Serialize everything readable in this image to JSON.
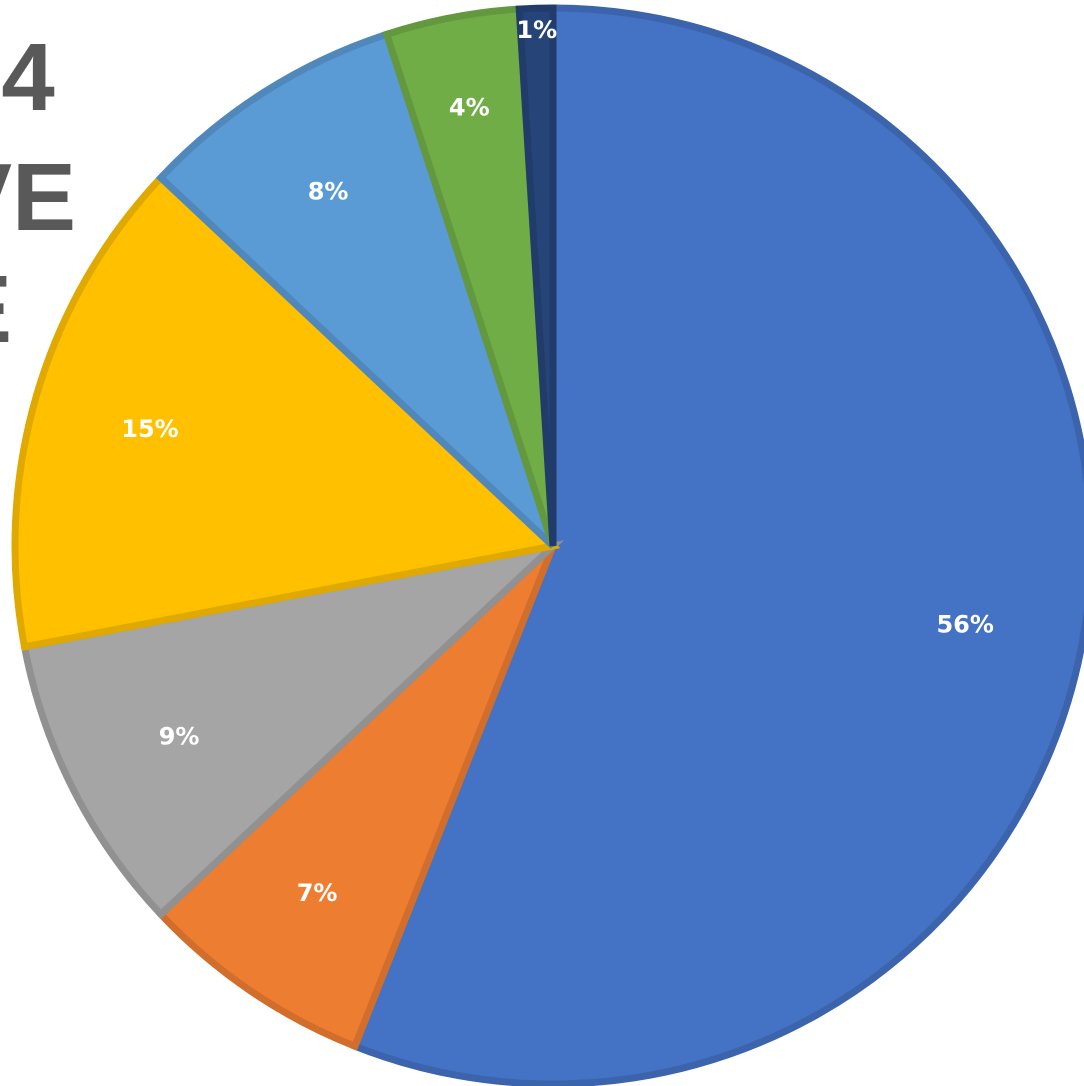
{
  "title_fragments": [
    "24",
    "VE",
    "E"
  ],
  "chart_data": {
    "type": "pie",
    "start_angle_deg": 0,
    "direction": "clockwise",
    "slices": [
      {
        "value": 56,
        "label": "56%",
        "color": "#4472C4"
      },
      {
        "value": 7,
        "label": "7%",
        "color": "#ED7D31"
      },
      {
        "value": 9,
        "label": "9%",
        "color": "#A5A5A5"
      },
      {
        "value": 15,
        "label": "15%",
        "color": "#FFC000"
      },
      {
        "value": 8,
        "label": "8%",
        "color": "#5B9BD5"
      },
      {
        "value": 4,
        "label": "4%",
        "color": "#70AD47"
      },
      {
        "value": 1,
        "label": "1%",
        "color": "#264478"
      }
    ],
    "legend": "none"
  }
}
